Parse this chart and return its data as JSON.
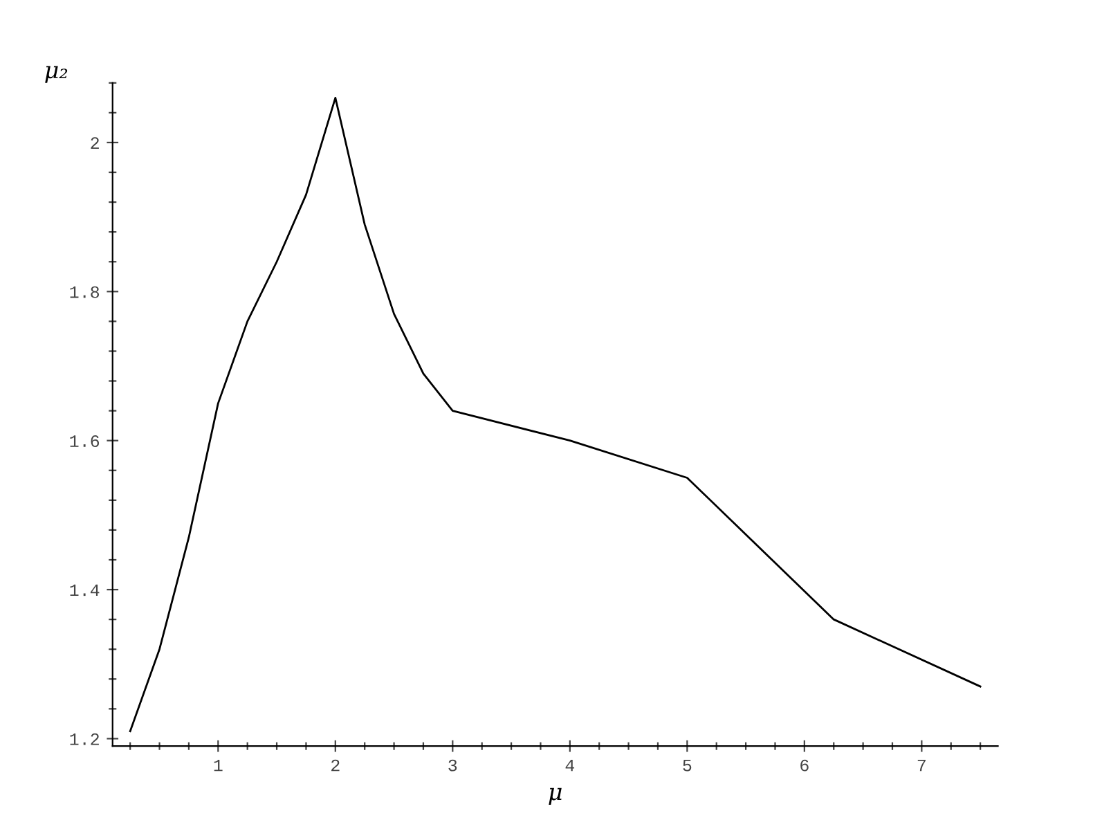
{
  "chart_data": {
    "type": "line",
    "xlabel": "μ",
    "ylabel": "μ₂",
    "x": [
      0.25,
      0.5,
      0.75,
      1,
      1.25,
      1.5,
      1.75,
      2,
      2.25,
      2.5,
      2.75,
      3,
      4,
      5,
      6.25,
      7.5
    ],
    "series": [
      {
        "color": "#000000",
        "values": [
          1.21,
          1.32,
          1.47,
          1.65,
          1.76,
          1.84,
          1.93,
          2.06,
          1.89,
          1.77,
          1.69,
          1.64,
          1.6,
          1.55,
          1.36,
          1.27
        ]
      }
    ],
    "xlim": [
      0.1,
      7.65
    ],
    "ylim": [
      1.19,
      2.08
    ],
    "xticks": [
      1,
      2,
      3,
      4,
      5,
      6,
      7
    ],
    "yticks": [
      1.2,
      1.4,
      1.6,
      1.8,
      2
    ],
    "grid": false,
    "legend": false,
    "marker": "none",
    "line_style": "solid"
  }
}
